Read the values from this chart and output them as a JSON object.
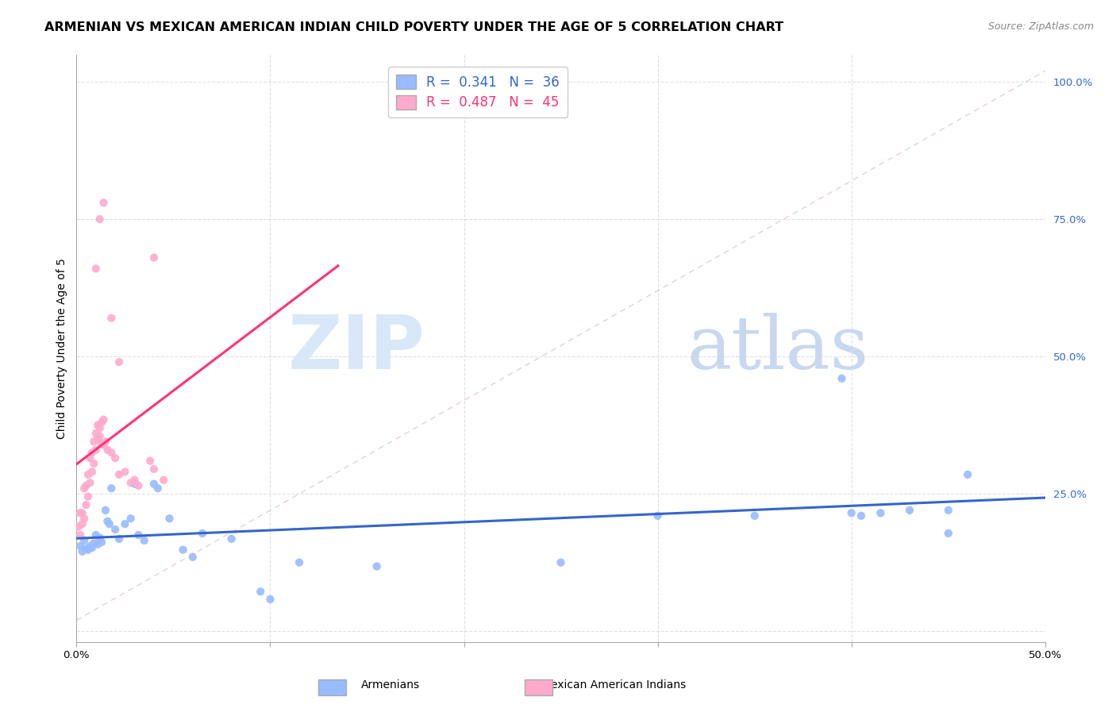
{
  "title": "ARMENIAN VS MEXICAN AMERICAN INDIAN CHILD POVERTY UNDER THE AGE OF 5 CORRELATION CHART",
  "source": "Source: ZipAtlas.com",
  "ylabel": "Child Poverty Under the Age of 5",
  "xlim": [
    0.0,
    0.5
  ],
  "ylim": [
    -0.02,
    1.05
  ],
  "blue_color": "#99BBFF",
  "pink_color": "#FFAACC",
  "trendline_blue_color": "#3366CC",
  "trendline_pink_color": "#FF3377",
  "grid_color": "#E0E0E0",
  "title_fontsize": 11.5,
  "axis_label_fontsize": 10,
  "tick_fontsize": 9.5,
  "source_fontsize": 9,
  "legend_fontsize": 12,
  "blue_scatter": [
    [
      0.002,
      0.155
    ],
    [
      0.003,
      0.145
    ],
    [
      0.004,
      0.165
    ],
    [
      0.005,
      0.15
    ],
    [
      0.006,
      0.148
    ],
    [
      0.007,
      0.155
    ],
    [
      0.008,
      0.152
    ],
    [
      0.009,
      0.16
    ],
    [
      0.01,
      0.175
    ],
    [
      0.011,
      0.158
    ],
    [
      0.012,
      0.17
    ],
    [
      0.013,
      0.162
    ],
    [
      0.015,
      0.22
    ],
    [
      0.016,
      0.2
    ],
    [
      0.017,
      0.195
    ],
    [
      0.018,
      0.26
    ],
    [
      0.02,
      0.185
    ],
    [
      0.022,
      0.168
    ],
    [
      0.025,
      0.195
    ],
    [
      0.028,
      0.205
    ],
    [
      0.03,
      0.268
    ],
    [
      0.032,
      0.175
    ],
    [
      0.035,
      0.165
    ],
    [
      0.04,
      0.268
    ],
    [
      0.042,
      0.26
    ],
    [
      0.048,
      0.205
    ],
    [
      0.055,
      0.148
    ],
    [
      0.06,
      0.135
    ],
    [
      0.065,
      0.178
    ],
    [
      0.08,
      0.168
    ],
    [
      0.095,
      0.072
    ],
    [
      0.1,
      0.058
    ],
    [
      0.115,
      0.125
    ],
    [
      0.155,
      0.118
    ],
    [
      0.25,
      0.125
    ],
    [
      0.3,
      0.21
    ],
    [
      0.35,
      0.21
    ],
    [
      0.395,
      0.46
    ],
    [
      0.4,
      0.215
    ],
    [
      0.405,
      0.21
    ],
    [
      0.415,
      0.215
    ],
    [
      0.43,
      0.22
    ],
    [
      0.45,
      0.22
    ],
    [
      0.46,
      0.285
    ],
    [
      0.45,
      0.178
    ]
  ],
  "pink_scatter": [
    [
      0.001,
      0.19
    ],
    [
      0.002,
      0.215
    ],
    [
      0.002,
      0.175
    ],
    [
      0.003,
      0.215
    ],
    [
      0.003,
      0.195
    ],
    [
      0.004,
      0.205
    ],
    [
      0.004,
      0.26
    ],
    [
      0.005,
      0.23
    ],
    [
      0.005,
      0.265
    ],
    [
      0.006,
      0.245
    ],
    [
      0.006,
      0.285
    ],
    [
      0.007,
      0.27
    ],
    [
      0.007,
      0.315
    ],
    [
      0.008,
      0.29
    ],
    [
      0.008,
      0.325
    ],
    [
      0.009,
      0.305
    ],
    [
      0.009,
      0.345
    ],
    [
      0.01,
      0.36
    ],
    [
      0.01,
      0.33
    ],
    [
      0.011,
      0.35
    ],
    [
      0.011,
      0.375
    ],
    [
      0.012,
      0.37
    ],
    [
      0.012,
      0.355
    ],
    [
      0.013,
      0.38
    ],
    [
      0.013,
      0.34
    ],
    [
      0.014,
      0.385
    ],
    [
      0.014,
      0.34
    ],
    [
      0.015,
      0.345
    ],
    [
      0.016,
      0.33
    ],
    [
      0.018,
      0.325
    ],
    [
      0.02,
      0.315
    ],
    [
      0.022,
      0.285
    ],
    [
      0.025,
      0.29
    ],
    [
      0.028,
      0.27
    ],
    [
      0.03,
      0.275
    ],
    [
      0.032,
      0.265
    ],
    [
      0.038,
      0.31
    ],
    [
      0.04,
      0.295
    ],
    [
      0.045,
      0.275
    ],
    [
      0.01,
      0.66
    ],
    [
      0.012,
      0.75
    ],
    [
      0.014,
      0.78
    ],
    [
      0.018,
      0.57
    ],
    [
      0.022,
      0.49
    ],
    [
      0.04,
      0.68
    ]
  ]
}
